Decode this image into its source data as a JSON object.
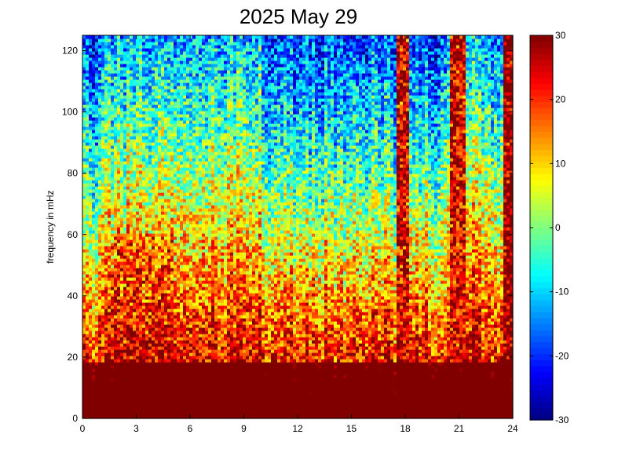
{
  "chart_data": {
    "type": "heatmap",
    "title": "2025 May 29",
    "xlabel": "",
    "ylabel": "frequency in mHz",
    "xlim": [
      0,
      24
    ],
    "ylim": [
      0,
      125
    ],
    "xticks": [
      0,
      3,
      6,
      9,
      12,
      15,
      18,
      21,
      24
    ],
    "yticks": [
      0,
      20,
      40,
      60,
      80,
      100,
      120
    ],
    "colorbar": {
      "min": -30,
      "max": 30,
      "ticks": [
        30,
        20,
        10,
        0,
        -10,
        -20,
        -30
      ],
      "colormap": "jet"
    },
    "features": [
      {
        "hour_start": 0,
        "hour_end": 24,
        "freq_max": 3,
        "level": 30
      },
      {
        "hour_start": 1.5,
        "hour_end": 5,
        "freq_max": 60,
        "level": 28
      },
      {
        "hour_start": 17.6,
        "hour_end": 18.2,
        "freq_max": 125,
        "level": 25
      },
      {
        "hour_start": 20.5,
        "hour_end": 21.3,
        "freq_max": 125,
        "level": 25
      },
      {
        "hour_start": 23.5,
        "hour_end": 24,
        "freq_max": 125,
        "level": 30
      }
    ]
  }
}
